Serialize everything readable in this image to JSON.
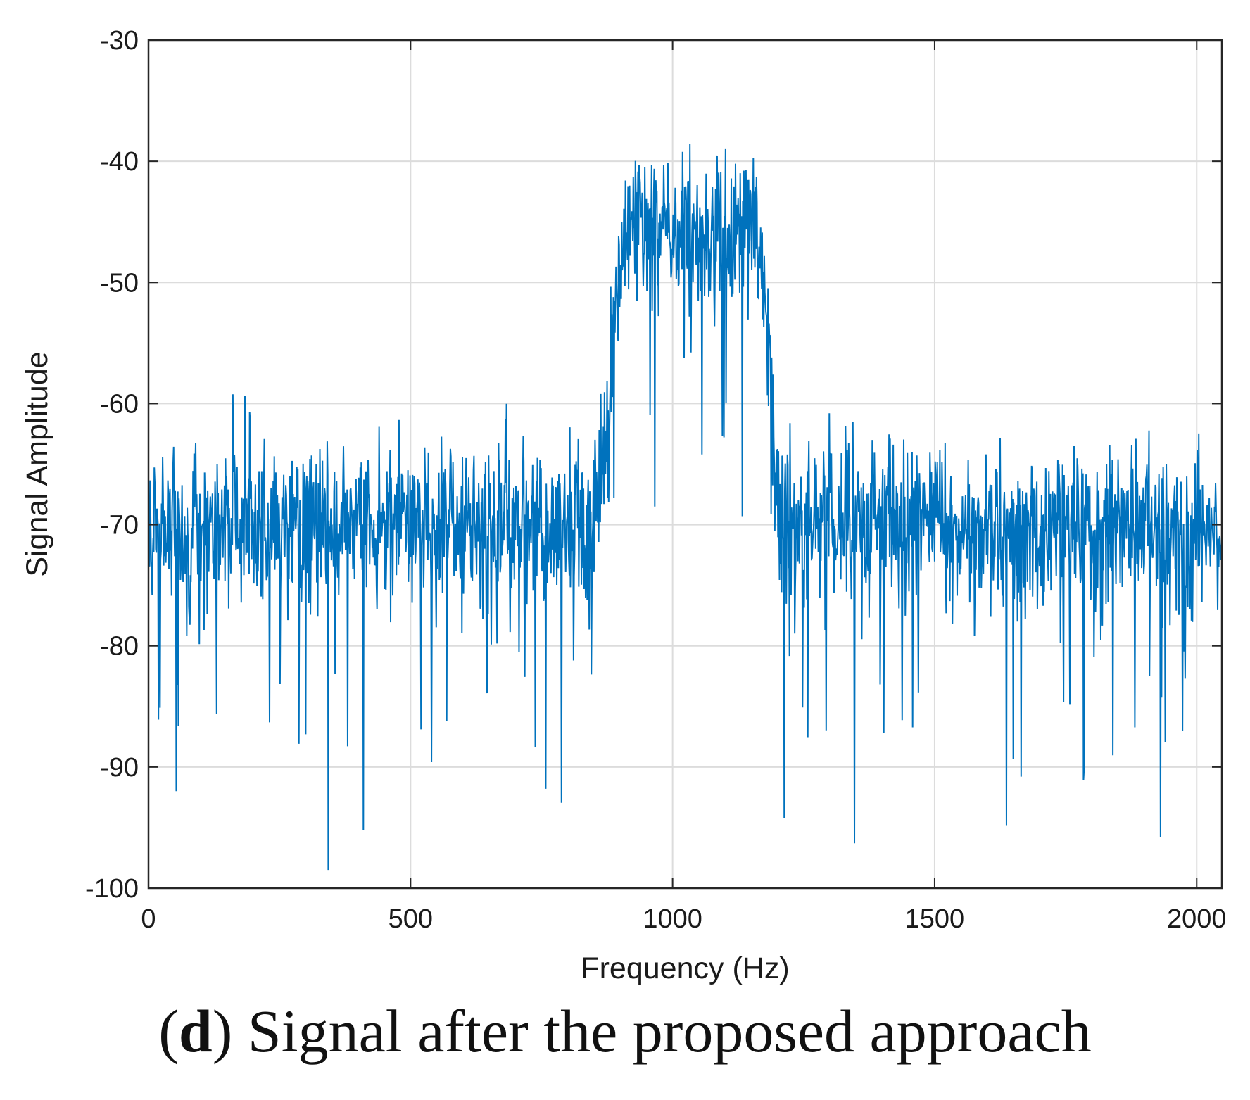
{
  "caption": {
    "letter": "d",
    "open_paren": "(",
    "close_paren": ")",
    "text": " Signal after the proposed approach"
  },
  "chart_data": {
    "type": "line",
    "title": "",
    "xlabel": "Frequency (Hz)",
    "ylabel": "Signal Amplitude",
    "xlim": [
      0,
      2048
    ],
    "ylim": [
      -100,
      -30
    ],
    "xticks": [
      0,
      500,
      1000,
      1500,
      2000
    ],
    "xtick_labels": [
      "0",
      "500",
      "1000",
      "1500",
      "2000"
    ],
    "yticks": [
      -100,
      -90,
      -80,
      -70,
      -60,
      -50,
      -40,
      -30
    ],
    "ytick_labels": [
      "-100",
      "-90",
      "-80",
      "-70",
      "-60",
      "-50",
      "-40",
      "-30"
    ],
    "grid": true,
    "line_color": "#0072BD",
    "noise_floor_db": -70,
    "passband_db": -46,
    "passband_hz": [
      880,
      1185
    ],
    "series": [
      {
        "name": "Signal",
        "peaks": [
          {
            "x": 1101,
            "y": -39
          },
          {
            "x": 960,
            "y": -40.3
          },
          {
            "x": 1120,
            "y": -40.2
          }
        ],
        "dips": [
          {
            "x": 343,
            "y": -98.5
          },
          {
            "x": 1347,
            "y": -96.3
          },
          {
            "x": 1637,
            "y": -94.8
          },
          {
            "x": 1213,
            "y": -94.2
          },
          {
            "x": 410,
            "y": -95.2
          },
          {
            "x": 53,
            "y": -92
          },
          {
            "x": 1784,
            "y": -91.1
          },
          {
            "x": 540,
            "y": -89.6
          },
          {
            "x": 300,
            "y": -87.3
          },
          {
            "x": 966,
            "y": -68.5
          },
          {
            "x": 1133,
            "y": -69.3
          },
          {
            "x": 1056,
            "y": -64.2
          }
        ]
      }
    ]
  }
}
